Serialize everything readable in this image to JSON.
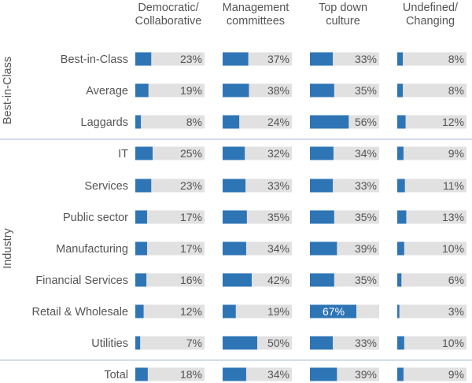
{
  "chart_data": {
    "type": "bar",
    "columns": [
      "Democratic/\nCollaborative",
      "Management\ncommittees",
      "Top down\nculture",
      "Undefined/\nChanging"
    ],
    "groups": [
      {
        "name": "Best-in-Class",
        "rows": [
          {
            "label": "Best-in-Class",
            "values": [
              23,
              37,
              33,
              8
            ]
          },
          {
            "label": "Average",
            "values": [
              19,
              38,
              35,
              8
            ]
          },
          {
            "label": "Laggards",
            "values": [
              8,
              24,
              56,
              12
            ]
          }
        ]
      },
      {
        "name": "Industry",
        "rows": [
          {
            "label": "IT",
            "values": [
              25,
              32,
              34,
              9
            ]
          },
          {
            "label": "Services",
            "values": [
              23,
              33,
              33,
              11
            ]
          },
          {
            "label": "Public sector",
            "values": [
              17,
              35,
              35,
              13
            ]
          },
          {
            "label": "Manufacturing",
            "values": [
              17,
              34,
              39,
              10
            ]
          },
          {
            "label": "Financial Services",
            "values": [
              16,
              42,
              35,
              6
            ]
          },
          {
            "label": "Retail & Wholesale",
            "values": [
              12,
              19,
              67,
              3
            ]
          },
          {
            "label": "Utilities",
            "values": [
              7,
              50,
              33,
              10
            ]
          }
        ]
      },
      {
        "name": "",
        "rows": [
          {
            "label": "Total",
            "values": [
              18,
              34,
              39,
              9
            ]
          }
        ]
      }
    ],
    "value_suffix": "%",
    "xlim": [
      0,
      100
    ],
    "colors": {
      "bar": "#2E75B6",
      "track": "#E1E1E1",
      "divider": "#A9BED0",
      "text": "#555555"
    }
  }
}
